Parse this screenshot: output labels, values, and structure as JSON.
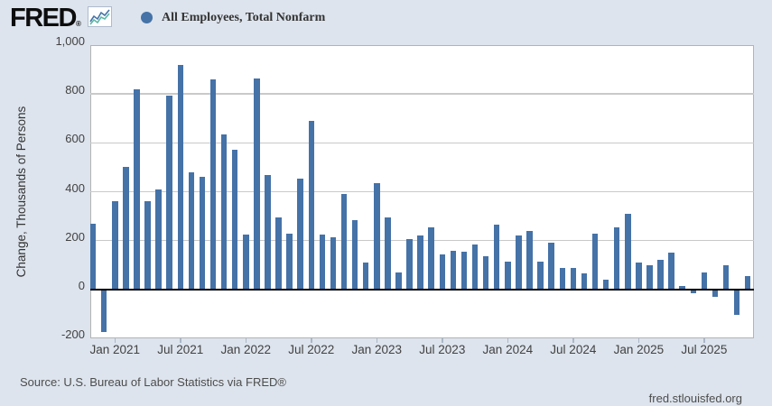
{
  "header": {
    "logo_text": "FRED",
    "registered_mark": "®",
    "legend": {
      "series_label": "All Employees, Total Nonfarm"
    }
  },
  "y_axis": {
    "title": "Change, Thousands of Persons",
    "ticks": [
      {
        "label": "1,000",
        "value": 1000
      },
      {
        "label": "800",
        "value": 800
      },
      {
        "label": "600",
        "value": 600
      },
      {
        "label": "400",
        "value": 400
      },
      {
        "label": "200",
        "value": 200
      },
      {
        "label": "0",
        "value": 0
      },
      {
        "label": "-200",
        "value": -200
      }
    ]
  },
  "x_axis": {
    "ticks": [
      {
        "label": "Jan 2021",
        "month_index": 2
      },
      {
        "label": "Jul 2021",
        "month_index": 8
      },
      {
        "label": "Jan 2022",
        "month_index": 14
      },
      {
        "label": "Jul 2022",
        "month_index": 20
      },
      {
        "label": "Jan 2023",
        "month_index": 26
      },
      {
        "label": "Jul 2023",
        "month_index": 32
      },
      {
        "label": "Jan 2024",
        "month_index": 38
      },
      {
        "label": "Jul 2024",
        "month_index": 44
      },
      {
        "label": "Jan 2025",
        "month_index": 50
      },
      {
        "label": "Jul 2025",
        "month_index": 56
      }
    ]
  },
  "footer": {
    "source": "Source: U.S. Bureau of Labor Statistics via FRED®",
    "site": "fred.stlouisfed.org"
  },
  "colors": {
    "bar": "#4572a7",
    "legend_dot": "#4572a7",
    "background": "#dde4ed",
    "plot_background": "#ffffff",
    "gridline": "#c9c9c9",
    "plot_border": "#b3b3b3",
    "zero_line": "#000000",
    "sparkline_blue": "#4573a8",
    "sparkline_green": "#5cb8a6"
  },
  "chart_data": {
    "type": "bar",
    "title": "All Employees, Total Nonfarm",
    "ylabel": "Change, Thousands of Persons",
    "units": "Change, Thousands of Persons",
    "ylim": [
      -200,
      1000
    ],
    "grid": true,
    "legend_position": "top-left",
    "x": [
      "2020-11",
      "2020-12",
      "2021-01",
      "2021-02",
      "2021-03",
      "2021-04",
      "2021-05",
      "2021-06",
      "2021-07",
      "2021-08",
      "2021-09",
      "2021-10",
      "2021-11",
      "2021-12",
      "2022-01",
      "2022-02",
      "2022-03",
      "2022-04",
      "2022-05",
      "2022-06",
      "2022-07",
      "2022-08",
      "2022-09",
      "2022-10",
      "2022-11",
      "2022-12",
      "2023-01",
      "2023-02",
      "2023-03",
      "2023-04",
      "2023-05",
      "2023-06",
      "2023-07",
      "2023-08",
      "2023-09",
      "2023-10",
      "2023-11",
      "2023-12",
      "2024-01",
      "2024-02",
      "2024-03",
      "2024-04",
      "2024-05",
      "2024-06",
      "2024-07",
      "2024-08",
      "2024-09",
      "2024-10",
      "2024-11",
      "2024-12",
      "2025-01",
      "2025-02",
      "2025-03",
      "2025-04",
      "2025-05",
      "2025-06",
      "2025-07",
      "2025-08",
      "2025-09",
      "2025-10",
      "2025-11"
    ],
    "values": [
      270,
      -175,
      363,
      500,
      820,
      360,
      410,
      795,
      920,
      480,
      460,
      860,
      635,
      570,
      225,
      865,
      470,
      295,
      230,
      455,
      690,
      225,
      215,
      390,
      285,
      110,
      435,
      295,
      70,
      205,
      220,
      255,
      145,
      157,
      155,
      185,
      135,
      265,
      115,
      220,
      240,
      113,
      190,
      87,
      87,
      65,
      230,
      40,
      255,
      310,
      110,
      100,
      120,
      150,
      15,
      -15,
      70,
      -30,
      100,
      -105,
      55
    ]
  }
}
